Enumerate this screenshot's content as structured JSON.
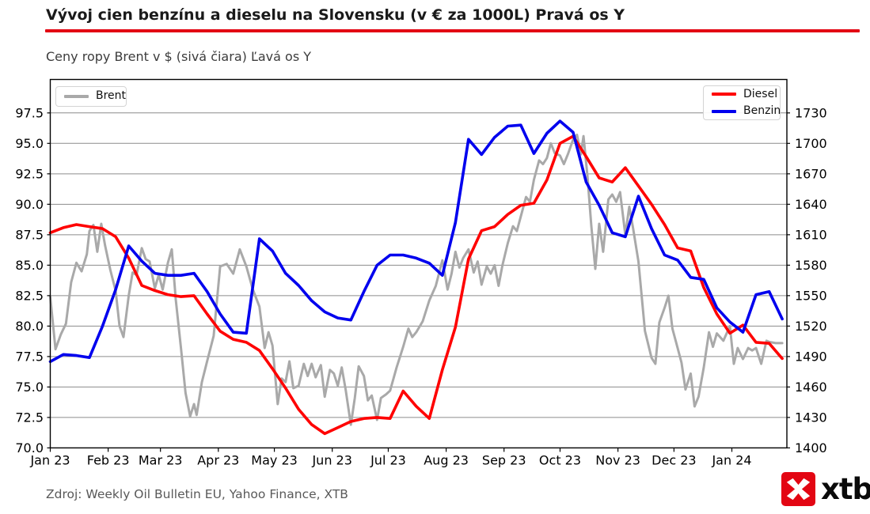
{
  "header": {
    "title": "Vývoj cien benzínu a dieselu na Slovensku (v € za 1000L) Pravá os Y",
    "subtitle": "Ceny ropy Brent v $ (sivá čiara) Ľavá os Y"
  },
  "source_note": "Zdroj: Weekly Oil Bulletin EU, Yahoo Finance, XTB",
  "brand": {
    "logo_text": "xtb",
    "brand_red": "#e30613"
  },
  "legends": {
    "brent_label": "Brent",
    "diesel_label": "Diesel",
    "benzin_label": "Benzin"
  },
  "chart_data": {
    "type": "line",
    "title": "Vývoj cien benzínu a dieselu na Slovensku (v € za 1000L) Pravá os Y",
    "subtitle": "Ceny ropy Brent v $ (sivá čiara) Ľavá os Y",
    "grid": true,
    "legend_positions": [
      "upper left",
      "upper right"
    ],
    "x_axis": {
      "tick_labels": [
        "Jan 23",
        "Feb 23",
        "Mar 23",
        "Apr 23",
        "May 23",
        "Jun 23",
        "Jul 23",
        "Aug 23",
        "Sep 23",
        "Oct 23",
        "Nov 23",
        "Dec 23",
        "Jan 24"
      ],
      "month_day_offsets": [
        0,
        31,
        59,
        90,
        120,
        151,
        181,
        212,
        243,
        273,
        304,
        334,
        365
      ]
    },
    "left_axis": {
      "label": "Brent v $",
      "range": [
        70.0,
        97.5
      ],
      "ticks": [
        "97.5",
        "95.0",
        "92.5",
        "90.0",
        "87.5",
        "85.0",
        "82.5",
        "80.0",
        "77.5",
        "75.0",
        "72.5",
        "70.0"
      ]
    },
    "right_axis": {
      "label": "€ za 1000L",
      "range": [
        1400,
        1730
      ],
      "ticks": [
        1730,
        1700,
        1670,
        1640,
        1610,
        1580,
        1550,
        1520,
        1490,
        1460,
        1430,
        1400
      ]
    },
    "series": [
      {
        "name": "Brent",
        "axis": "left",
        "unit": "USD",
        "color": "#a9a9a9",
        "line_width": 3,
        "x_weeks": [
          0,
          0.4,
          0.8,
          1.2,
          1.6,
          2,
          2.4,
          2.8,
          3,
          3.3,
          3.6,
          3.9,
          4.2,
          4.6,
          5,
          5.3,
          5.6,
          6,
          6.3,
          6.6,
          7,
          7.3,
          7.6,
          8,
          8.3,
          8.6,
          9,
          9.3,
          9.6,
          10,
          10.35,
          10.7,
          11,
          11.2,
          11.6,
          12,
          12.5,
          13,
          13.5,
          14,
          14.5,
          15,
          15.5,
          16,
          16.4,
          16.7,
          17,
          17.4,
          17.7,
          18,
          18.3,
          18.6,
          19,
          19.4,
          19.7,
          20,
          20.3,
          20.7,
          21,
          21.4,
          21.7,
          22,
          22.3,
          22.6,
          23,
          23.3,
          23.6,
          24,
          24.3,
          24.6,
          25,
          25.3,
          25.7,
          26,
          26.5,
          27,
          27.4,
          27.7,
          28,
          28.5,
          29,
          29.5,
          30,
          30.4,
          30.7,
          31,
          31.3,
          31.6,
          32,
          32.4,
          32.7,
          33,
          33.4,
          33.7,
          34,
          34.3,
          34.6,
          35,
          35.4,
          35.7,
          36,
          36.4,
          36.7,
          37,
          37.4,
          37.7,
          38,
          38.3,
          38.6,
          39,
          39.3,
          39.6,
          40,
          40.3,
          40.6,
          40.8,
          41.1,
          41.4,
          41.7,
          42,
          42.3,
          42.7,
          43,
          43.3,
          43.6,
          44,
          44.3,
          44.6,
          45,
          45.5,
          46,
          46.3,
          46.6,
          47,
          47.3,
          47.6,
          48,
          48.3,
          48.6,
          49,
          49.3,
          49.6,
          50,
          50.4,
          50.7,
          51,
          51.5,
          52,
          52.3,
          52.6,
          53,
          53.4,
          53.7,
          54,
          54.4,
          54.8,
          55,
          55.5,
          56
        ],
        "values": [
          82.4,
          78.1,
          79.3,
          80.2,
          83.6,
          85.2,
          84.5,
          85.9,
          87.8,
          88.3,
          86.1,
          88.4,
          86.6,
          84.6,
          82.9,
          80.0,
          79.1,
          82.5,
          84.4,
          84.2,
          86.4,
          85.5,
          85.3,
          83.1,
          84.2,
          83.0,
          85.2,
          86.3,
          82.2,
          78.2,
          74.5,
          72.6,
          73.6,
          72.7,
          75.4,
          77.1,
          79.2,
          84.9,
          85.1,
          84.3,
          86.3,
          84.9,
          83.0,
          81.6,
          78.2,
          79.5,
          78.4,
          73.6,
          75.7,
          75.4,
          77.1,
          74.9,
          75.1,
          76.9,
          75.9,
          76.9,
          75.8,
          76.8,
          74.2,
          76.4,
          76.1,
          75.1,
          76.6,
          74.8,
          71.9,
          74.1,
          76.7,
          75.9,
          73.9,
          74.3,
          72.3,
          74.1,
          74.4,
          74.7,
          76.6,
          78.3,
          79.8,
          79.1,
          79.5,
          80.4,
          82.1,
          83.3,
          85.4,
          83.0,
          84.3,
          86.1,
          84.8,
          85.6,
          86.3,
          84.4,
          85.3,
          83.4,
          84.9,
          84.3,
          85.0,
          83.3,
          85.0,
          86.8,
          88.2,
          87.8,
          89.0,
          90.6,
          90.2,
          92.0,
          93.6,
          93.3,
          93.8,
          95.0,
          94.2,
          94.0,
          93.3,
          94.1,
          95.3,
          95.7,
          94.1,
          95.6,
          92.3,
          88.2,
          84.7,
          88.4,
          86.1,
          90.4,
          90.8,
          90.2,
          91.0,
          87.5,
          89.8,
          88.0,
          85.3,
          79.6,
          77.4,
          76.9,
          80.3,
          81.5,
          82.5,
          79.8,
          78.2,
          77.0,
          74.8,
          76.1,
          73.4,
          74.2,
          76.6,
          79.5,
          78.3,
          79.4,
          78.8,
          80.0,
          76.9,
          78.2,
          77.3,
          78.2,
          78.0,
          78.2,
          76.9,
          78.8,
          78.7,
          78.6,
          78.6
        ]
      },
      {
        "name": "Diesel",
        "axis": "right",
        "unit": "EUR/1000L",
        "color": "#ff0000",
        "line_width": 3.6,
        "x_weeks": null,
        "values": [
          1612,
          1617,
          1620,
          1618,
          1616,
          1608,
          1587,
          1560,
          1555,
          1551,
          1549,
          1550,
          1532,
          1515,
          1507,
          1504,
          1496,
          1478,
          1459,
          1438,
          1423,
          1414,
          1420,
          1426,
          1429,
          1430,
          1429,
          1456,
          1441,
          1429,
          1477,
          1519,
          1586,
          1614,
          1618,
          1630,
          1639,
          1641,
          1664,
          1700,
          1707,
          1687,
          1666,
          1662,
          1676,
          1658,
          1640,
          1620,
          1597,
          1594,
          1558,
          1532,
          1513,
          1521,
          1504,
          1503,
          1488
        ]
      },
      {
        "name": "Benzin",
        "axis": "right",
        "unit": "EUR/1000L",
        "color": "#0000ee",
        "line_width": 3.6,
        "x_weeks": null,
        "values": [
          1485,
          1492,
          1491,
          1489,
          1520,
          1556,
          1599,
          1584,
          1572,
          1570,
          1570,
          1572,
          1554,
          1532,
          1514,
          1513,
          1606,
          1594,
          1572,
          1560,
          1545,
          1534,
          1528,
          1526,
          1554,
          1580,
          1590,
          1590,
          1587,
          1582,
          1570,
          1622,
          1704,
          1689,
          1706,
          1717,
          1718,
          1690,
          1710,
          1722,
          1711,
          1662,
          1639,
          1612,
          1608,
          1648,
          1616,
          1590,
          1585,
          1568,
          1566,
          1538,
          1524,
          1514,
          1551,
          1554,
          1527
        ]
      }
    ]
  }
}
